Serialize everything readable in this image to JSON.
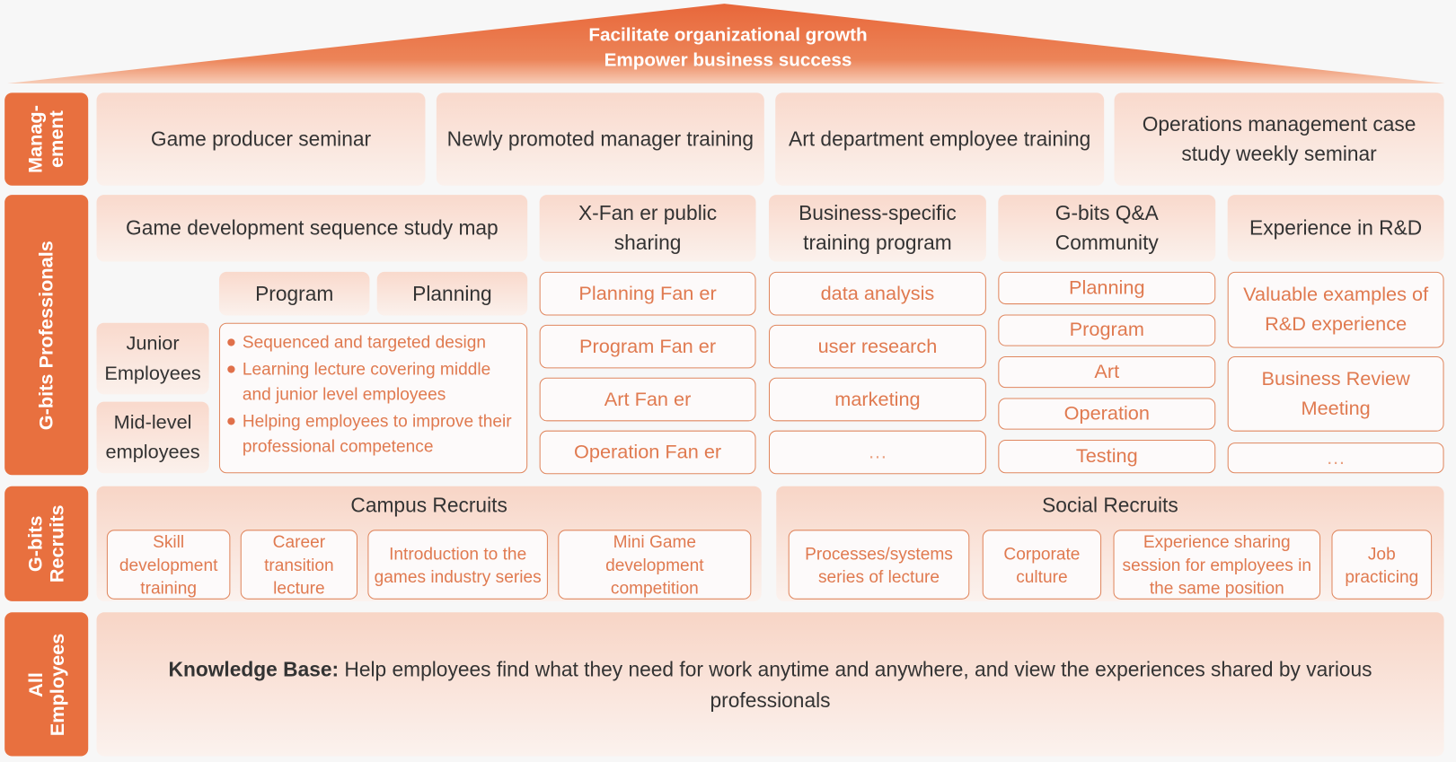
{
  "roof": {
    "line1": "Facilitate organizational growth",
    "line2": "Empower business success",
    "color": "#e8703f"
  },
  "rows": {
    "management": {
      "label": "Manag- ement",
      "label_l1": "Manag-",
      "label_l2": "ement",
      "items": [
        "Game producer seminar",
        "Newly promoted manager training",
        "Art department employee training",
        "Operations management case study weekly seminar"
      ]
    },
    "professionals": {
      "label": "G-bits Professionals",
      "headers": [
        "Game development sequence study map",
        "X-Fan er public sharing",
        "Business-specific training program",
        "G-bits Q&A Community",
        "Experience in R&D"
      ],
      "study_map": {
        "tabs": [
          "Program",
          "Planning"
        ],
        "levels": [
          "Junior Employees",
          "Mid-level employees"
        ],
        "bullets": [
          "Sequenced and targeted design",
          "Learning lecture covering middle and junior level employees",
          "Helping employees to improve their professional competence"
        ]
      },
      "fan_er": [
        "Planning Fan er",
        "Program Fan er",
        "Art Fan er",
        "Operation Fan er"
      ],
      "business": [
        "data analysis",
        "user research",
        "marketing",
        "…"
      ],
      "qa": [
        "Planning",
        "Program",
        "Art",
        "Operation",
        "Testing"
      ],
      "rd": [
        "Valuable examples of R&D experience",
        "Business Review Meeting",
        "…"
      ]
    },
    "recruits": {
      "label_l1": "G-bits",
      "label_l2": "Recruits",
      "campus": {
        "title": "Campus Recruits",
        "items": [
          "Skill development training",
          "Career transition lecture",
          "Introduction to the games industry series",
          "Mini Game development competition"
        ]
      },
      "social": {
        "title": "Social Recruits",
        "items": [
          "Processes/systems series of lecture",
          "Corporate culture",
          "Experience sharing session for employees in the same position",
          "Job practicing"
        ]
      }
    },
    "all": {
      "label_l1": "All",
      "label_l2": "Employees",
      "kb_bold": "Knowledge Base:",
      "kb_text": " Help employees find what they need for work anytime and anywhere, and view the experiences shared by various professionals"
    }
  }
}
